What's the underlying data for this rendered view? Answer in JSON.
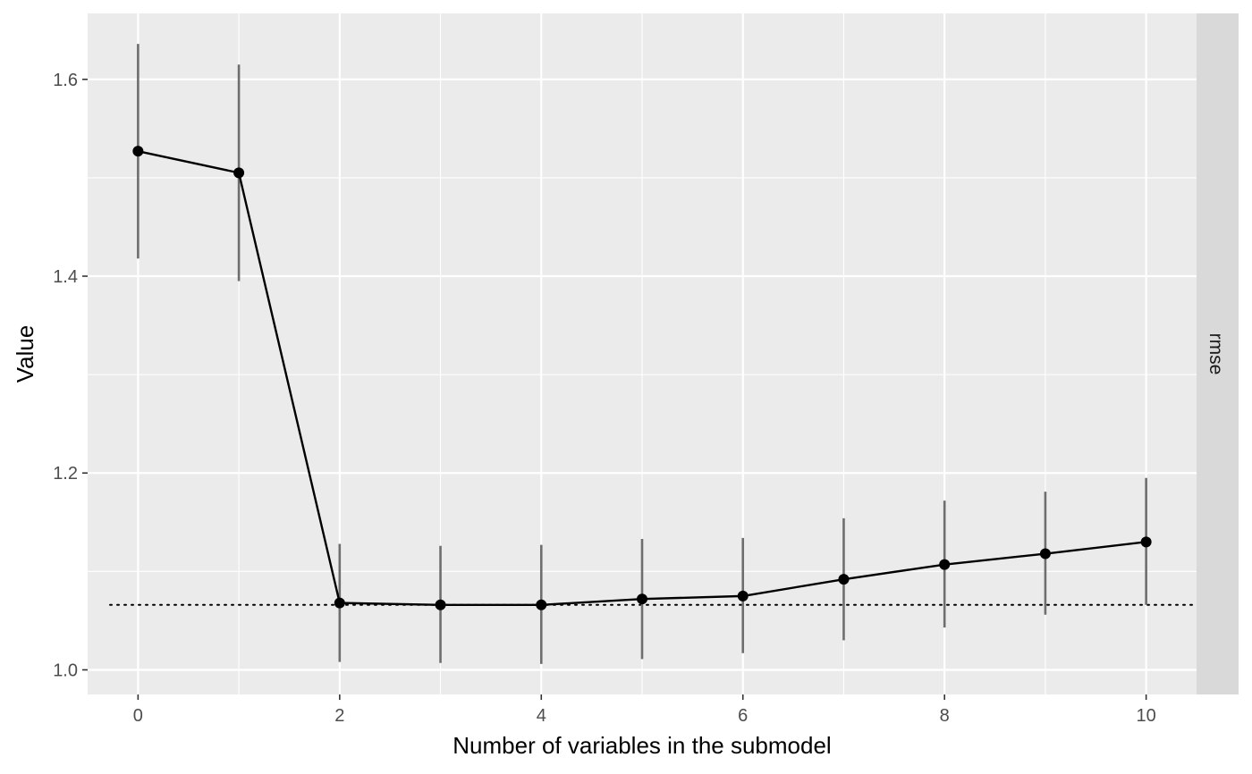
{
  "chart_data": {
    "type": "line",
    "title": "",
    "xlabel": "Number of variables in the submodel",
    "ylabel": "Value",
    "facet_label": "rmse",
    "xlim": [
      -0.5,
      10.5
    ],
    "ylim": [
      0.975,
      1.667
    ],
    "x_ticks": [
      0,
      2,
      4,
      6,
      8,
      10
    ],
    "y_ticks": [
      1.0,
      1.2,
      1.4,
      1.6
    ],
    "y_tick_labels": [
      "1.0",
      "1.2",
      "1.4",
      "1.6"
    ],
    "x_tick_labels": [
      "0",
      "2",
      "4",
      "6",
      "8",
      "10"
    ],
    "reference_line": 1.066,
    "series": [
      {
        "name": "rmse",
        "x": [
          0,
          1,
          2,
          3,
          4,
          5,
          6,
          7,
          8,
          9,
          10
        ],
        "values": [
          1.527,
          1.505,
          1.068,
          1.066,
          1.066,
          1.072,
          1.075,
          1.092,
          1.107,
          1.118,
          1.13
        ],
        "lower": [
          1.418,
          1.395,
          1.008,
          1.007,
          1.006,
          1.011,
          1.017,
          1.03,
          1.043,
          1.056,
          1.066
        ],
        "upper": [
          1.636,
          1.615,
          1.128,
          1.126,
          1.127,
          1.133,
          1.134,
          1.154,
          1.172,
          1.181,
          1.195
        ]
      }
    ],
    "colors": {
      "panel": "#ebebeb",
      "grid": "#ffffff",
      "strip": "#d9d9d9",
      "line": "#000000",
      "errorbar": "#6e6e6e"
    }
  }
}
